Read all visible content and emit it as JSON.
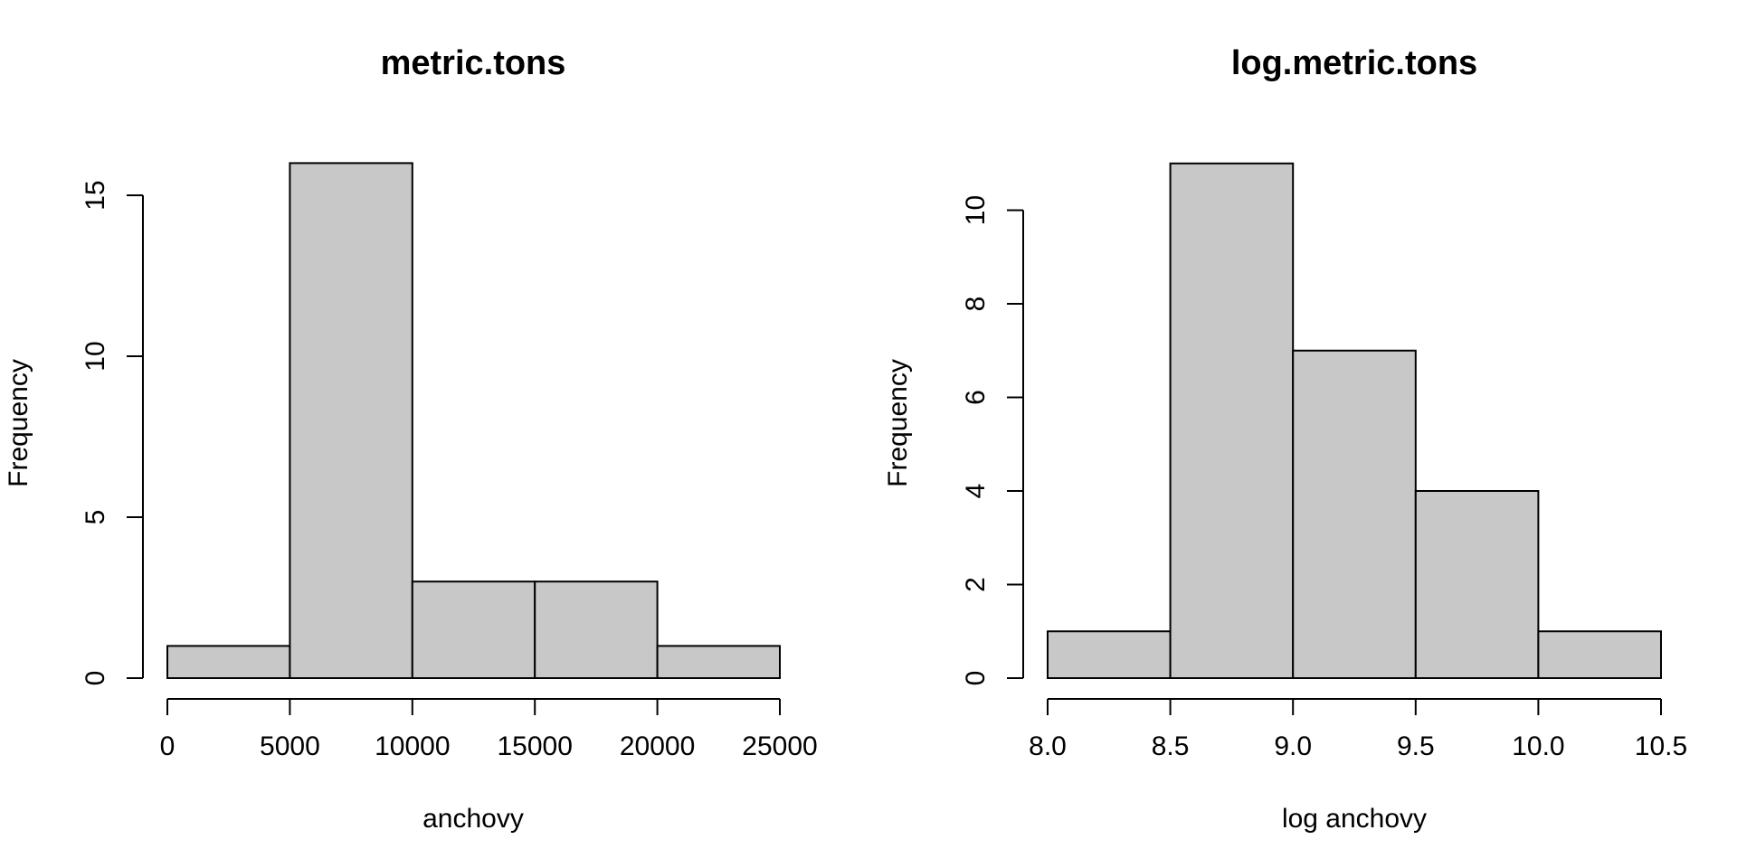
{
  "colors": {
    "bar_fill": "#c8c8c8",
    "bar_stroke": "#000000",
    "background": "#ffffff"
  },
  "chart_data": [
    {
      "type": "bar",
      "subtype": "histogram",
      "title": "metric.tons",
      "xlabel": "anchovy",
      "ylabel": "Frequency",
      "bins": [
        {
          "from": 0,
          "to": 5000,
          "count": 1
        },
        {
          "from": 5000,
          "to": 10000,
          "count": 16
        },
        {
          "from": 10000,
          "to": 15000,
          "count": 3
        },
        {
          "from": 15000,
          "to": 20000,
          "count": 3
        },
        {
          "from": 20000,
          "to": 25000,
          "count": 1
        }
      ],
      "xlim": [
        0,
        25000
      ],
      "ylim": [
        0,
        16
      ],
      "x_ticks": [
        0,
        5000,
        10000,
        15000,
        20000,
        25000
      ],
      "x_tick_labels": [
        "0",
        "5000",
        "10000",
        "15000",
        "20000",
        "25000"
      ],
      "y_ticks": [
        0,
        5,
        10,
        15
      ],
      "y_tick_labels": [
        "0",
        "5",
        "10",
        "15"
      ],
      "grid": false
    },
    {
      "type": "bar",
      "subtype": "histogram",
      "title": "log.metric.tons",
      "xlabel": "log anchovy",
      "ylabel": "Frequency",
      "bins": [
        {
          "from": 8.0,
          "to": 8.5,
          "count": 1
        },
        {
          "from": 8.5,
          "to": 9.0,
          "count": 11
        },
        {
          "from": 9.0,
          "to": 9.5,
          "count": 7
        },
        {
          "from": 9.5,
          "to": 10.0,
          "count": 4
        },
        {
          "from": 10.0,
          "to": 10.5,
          "count": 1
        }
      ],
      "xlim": [
        8.0,
        10.5
      ],
      "ylim": [
        0,
        11
      ],
      "x_ticks": [
        8.0,
        8.5,
        9.0,
        9.5,
        10.0,
        10.5
      ],
      "x_tick_labels": [
        "8.0",
        "8.5",
        "9.0",
        "9.5",
        "10.0",
        "10.5"
      ],
      "y_ticks": [
        0,
        2,
        4,
        6,
        8,
        10
      ],
      "y_tick_labels": [
        "0",
        "2",
        "4",
        "6",
        "8",
        "10"
      ],
      "grid": false
    }
  ]
}
